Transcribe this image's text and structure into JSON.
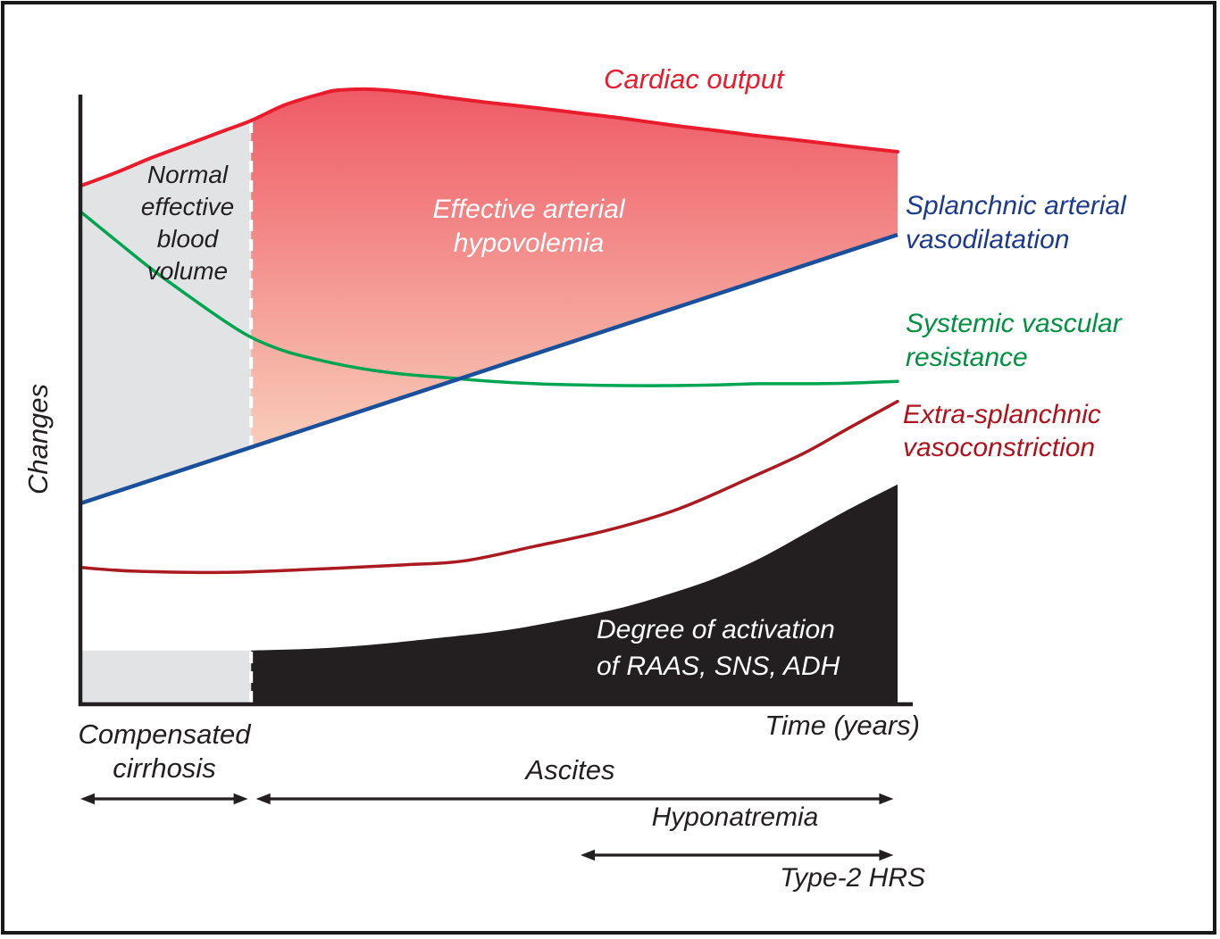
{
  "chart_data": {
    "type": "line",
    "ylabel": "Changes",
    "xlabel": "Time (years)",
    "x_units": "fraction of time axis (qualitative, years)",
    "y_units": "relative level (0 = x-axis baseline, 1 = plot top), digitized from schematic",
    "xlim": [
      0,
      1
    ],
    "ylim": [
      0,
      1.05
    ],
    "grid": false,
    "series": [
      {
        "name": "Cardiac output",
        "label_lines": [
          "Cardiac output"
        ],
        "color": "#e81c2d",
        "label_color": "#e81c2d",
        "style": "curve",
        "x": [
          0,
          0.044,
          0.087,
          0.131,
          0.175,
          0.209,
          0.251,
          0.295,
          0.317,
          0.361,
          0.41,
          0.448,
          0.503,
          0.557,
          0.612,
          0.667,
          0.721,
          0.776,
          0.83,
          0.885,
          0.94,
          1.0
        ],
        "values": [
          0.849,
          0.871,
          0.895,
          0.917,
          0.939,
          0.956,
          0.982,
          1.0,
          1.006,
          1.007,
          1.001,
          0.994,
          0.985,
          0.977,
          0.968,
          0.959,
          0.949,
          0.94,
          0.931,
          0.923,
          0.914,
          0.905
        ]
      },
      {
        "name": "Splanchnic arterial vasodilatation",
        "label_lines": [
          "Splanchnic arterial",
          "vasodilatation"
        ],
        "color": "#1a4f9c",
        "label_color": "#1c3a8d",
        "style": "straight-line",
        "x": [
          0,
          1.0
        ],
        "values": [
          0.329,
          0.769
        ]
      },
      {
        "name": "Systemic vascular resistance",
        "label_lines": [
          "Systemic vascular",
          "resistance"
        ],
        "color": "#00a551",
        "label_color": "#009140",
        "style": "curve",
        "x": [
          0,
          0.044,
          0.087,
          0.131,
          0.175,
          0.209,
          0.251,
          0.295,
          0.339,
          0.393,
          0.448,
          0.503,
          0.557,
          0.612,
          0.667,
          0.721,
          0.776,
          0.83,
          0.885,
          0.94,
          1.0
        ],
        "values": [
          0.807,
          0.759,
          0.713,
          0.67,
          0.629,
          0.601,
          0.578,
          0.563,
          0.551,
          0.541,
          0.535,
          0.529,
          0.525,
          0.523,
          0.522,
          0.522,
          0.523,
          0.525,
          0.525,
          0.526,
          0.529
        ]
      },
      {
        "name": "Extra-splanchnic vasoconstriction",
        "label_lines": [
          "Extra-splanchnic",
          "vasoconstriction"
        ],
        "color": "#aa1a20",
        "label_color": "#b0121b",
        "style": "curve",
        "x": [
          0,
          0.066,
          0.175,
          0.284,
          0.393,
          0.47,
          0.557,
          0.645,
          0.732,
          0.82,
          0.885,
          0.94,
          1.0
        ],
        "values": [
          0.224,
          0.218,
          0.216,
          0.221,
          0.228,
          0.235,
          0.259,
          0.285,
          0.32,
          0.371,
          0.411,
          0.452,
          0.496
        ]
      },
      {
        "name": "Degree of activation of RAAS, SNS, ADH",
        "label_lines": [
          "Degree of activation",
          "of RAAS, SNS, ADH"
        ],
        "color": "#231f20",
        "label_color": "#ffffff",
        "style": "filled-area",
        "baseline_value": 0.088,
        "baseline_span": [
          0,
          0.209
        ],
        "x": [
          0.209,
          0.284,
          0.361,
          0.448,
          0.514,
          0.579,
          0.656,
          0.721,
          0.776,
          0.83,
          0.885,
          0.94,
          1.0
        ],
        "values": [
          0.088,
          0.091,
          0.098,
          0.11,
          0.12,
          0.135,
          0.156,
          0.181,
          0.206,
          0.238,
          0.278,
          0.319,
          0.36
        ]
      }
    ],
    "regions": [
      {
        "name": "normal-effective-blood-volume",
        "label_lines": [
          "Normal",
          "effective",
          "blood",
          "volume"
        ],
        "fill": "#e2e3e5",
        "text_color": "#231f20",
        "bounds": "between cardiac output curve and splanchnic line, left of divider"
      },
      {
        "name": "effective-arterial-hypovolemia",
        "label_lines": [
          "Effective arterial",
          "hypovolemia"
        ],
        "fill": "vertical gradient",
        "text_color": "#ffffff",
        "bounds": "between cardiac output curve and splanchnic line, right of divider"
      }
    ],
    "phases": [
      {
        "label": "Compensated cirrhosis",
        "label_lines": [
          "Compensated",
          "cirrhosis"
        ],
        "span_fraction": [
          0,
          0.205
        ],
        "arrow": true
      },
      {
        "label": "Ascites",
        "label_lines": [
          "Ascites"
        ],
        "span_fraction": [
          0.215,
          0.995
        ],
        "arrow": true
      },
      {
        "label": "Hyponatremia",
        "label_lines": [
          "Hyponatremia"
        ],
        "span_fraction": [
          0.612,
          0.995
        ],
        "arrow": true
      },
      {
        "label": "Type-2 HRS",
        "label_lines": [
          "Type-2 HRS"
        ],
        "span_fraction": null,
        "arrow": false
      }
    ],
    "divider": {
      "position_fraction": 0.209,
      "style": "white dashed vertical line"
    },
    "colors": {
      "axis": "#231f20",
      "frame": "#191919",
      "dashed_divider": "#ffffff",
      "normal_region_fill": "#e2e3e5",
      "hypovolemia_gradient_top": "#ee5a66",
      "hypovolemia_gradient_bottom": "#f9cdb9",
      "raas_area_fill": "#231f20",
      "arrow": "#231f20"
    }
  }
}
